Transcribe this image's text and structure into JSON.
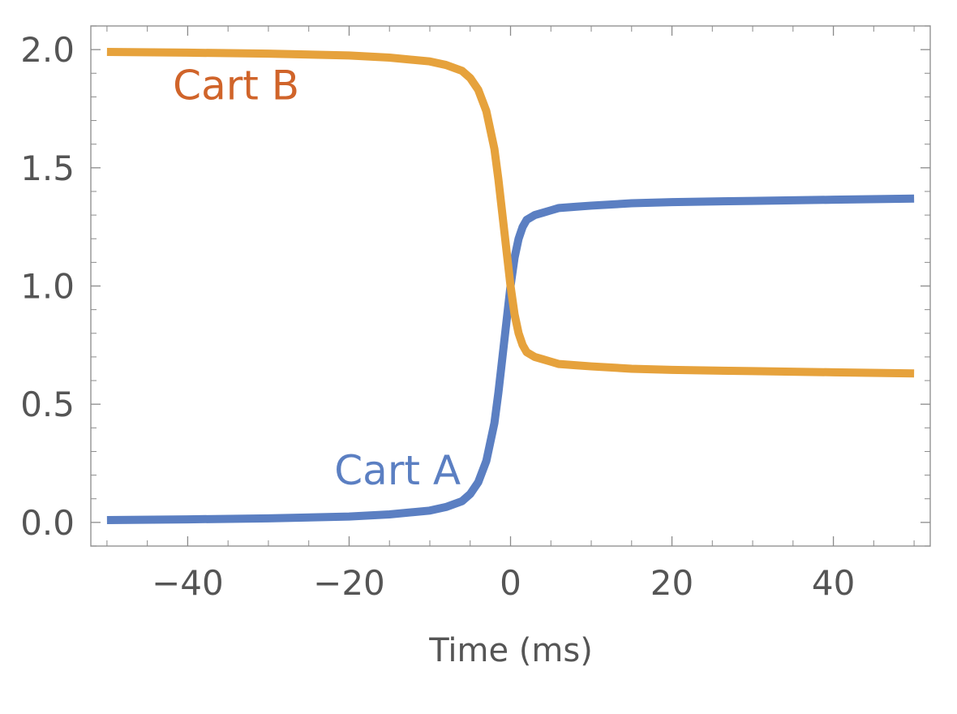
{
  "chart_data": {
    "type": "line",
    "title": "",
    "xlabel": "Time (ms)",
    "ylabel": "",
    "xlim": [
      -52,
      52
    ],
    "ylim": [
      -0.1,
      2.1
    ],
    "x_ticks": [
      -40,
      -20,
      0,
      20,
      40
    ],
    "x_tick_labels": [
      "−40",
      "−20",
      "0",
      "20",
      "40"
    ],
    "y_ticks": [
      0.0,
      0.5,
      1.0,
      1.5,
      2.0
    ],
    "y_tick_labels": [
      "0.0",
      "0.5",
      "1.0",
      "1.5",
      "2.0"
    ],
    "grid": false,
    "frame": true,
    "x": [
      -50,
      -40,
      -30,
      -20,
      -15,
      -10,
      -8,
      -6,
      -5,
      -4,
      -3,
      -2,
      -1.5,
      -1,
      -0.5,
      0,
      0.5,
      1,
      1.5,
      2,
      3,
      4,
      5,
      6,
      8,
      10,
      15,
      20,
      30,
      40,
      50
    ],
    "series": [
      {
        "name": "Cart A",
        "color": "#5B7FC2",
        "values": [
          0.01,
          0.013,
          0.017,
          0.025,
          0.034,
          0.05,
          0.065,
          0.09,
          0.12,
          0.17,
          0.26,
          0.42,
          0.55,
          0.7,
          0.85,
          1.0,
          1.12,
          1.2,
          1.25,
          1.28,
          1.3,
          1.31,
          1.32,
          1.33,
          1.335,
          1.34,
          1.35,
          1.355,
          1.36,
          1.365,
          1.37
        ]
      },
      {
        "name": "Cart B",
        "color": "#E6A23C",
        "label_color": "#D0642A",
        "values": [
          1.99,
          1.987,
          1.983,
          1.975,
          1.966,
          1.95,
          1.935,
          1.91,
          1.88,
          1.83,
          1.74,
          1.58,
          1.45,
          1.3,
          1.15,
          1.0,
          0.88,
          0.8,
          0.75,
          0.72,
          0.7,
          0.69,
          0.68,
          0.67,
          0.665,
          0.66,
          0.65,
          0.645,
          0.64,
          0.635,
          0.63
        ]
      }
    ],
    "series_labels": [
      {
        "text": "Cart A",
        "x": -14,
        "y": 0.16,
        "series": 0
      },
      {
        "text": "Cart B",
        "x": -34,
        "y": 1.79,
        "series": 1
      }
    ]
  }
}
